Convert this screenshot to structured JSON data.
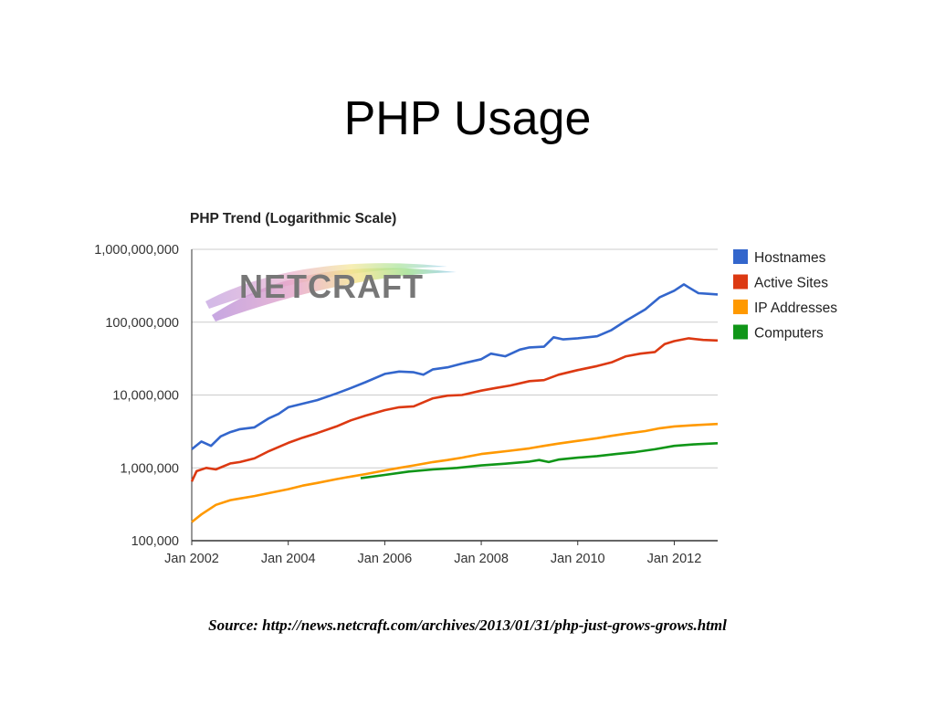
{
  "slide": {
    "title": "PHP Usage",
    "source": "Source: http://news.netcraft.com/archives/2013/01/31/php-just-grows-grows.html"
  },
  "logo": {
    "text": "NETCRAFT"
  },
  "chart_data": {
    "type": "line",
    "title": "PHP Trend (Logarithmic Scale)",
    "xlabel": "",
    "ylabel": "",
    "y_scale": "log",
    "ylim": [
      100000,
      1000000000
    ],
    "xlim": [
      2002.0,
      2012.9
    ],
    "y_ticks": [
      {
        "value": 1000000000,
        "label": "1,000,000,000"
      },
      {
        "value": 100000000,
        "label": "100,000,000"
      },
      {
        "value": 10000000,
        "label": "10,000,000"
      },
      {
        "value": 1000000,
        "label": "1,000,000"
      },
      {
        "value": 100000,
        "label": "100,000"
      }
    ],
    "x_ticks": [
      {
        "value": 2002,
        "label": "Jan 2002"
      },
      {
        "value": 2004,
        "label": "Jan 2004"
      },
      {
        "value": 2006,
        "label": "Jan 2006"
      },
      {
        "value": 2008,
        "label": "Jan 2008"
      },
      {
        "value": 2010,
        "label": "Jan 2010"
      },
      {
        "value": 2012,
        "label": "Jan 2012"
      }
    ],
    "grid": true,
    "legend_position": "right",
    "series": [
      {
        "name": "Hostnames",
        "color": "#3366cc",
        "points": [
          [
            2002.0,
            1800000
          ],
          [
            2002.2,
            2300000
          ],
          [
            2002.4,
            2000000
          ],
          [
            2002.6,
            2700000
          ],
          [
            2002.8,
            3100000
          ],
          [
            2003.0,
            3400000
          ],
          [
            2003.3,
            3600000
          ],
          [
            2003.6,
            4800000
          ],
          [
            2003.8,
            5500000
          ],
          [
            2004.0,
            6800000
          ],
          [
            2004.3,
            7600000
          ],
          [
            2004.6,
            8500000
          ],
          [
            2005.0,
            10500000
          ],
          [
            2005.3,
            12500000
          ],
          [
            2005.6,
            15000000
          ],
          [
            2006.0,
            19500000
          ],
          [
            2006.3,
            21000000
          ],
          [
            2006.6,
            20500000
          ],
          [
            2006.8,
            19000000
          ],
          [
            2007.0,
            22500000
          ],
          [
            2007.3,
            24000000
          ],
          [
            2007.6,
            27000000
          ],
          [
            2008.0,
            31000000
          ],
          [
            2008.2,
            37000000
          ],
          [
            2008.5,
            34000000
          ],
          [
            2008.8,
            42000000
          ],
          [
            2009.0,
            45000000
          ],
          [
            2009.3,
            46000000
          ],
          [
            2009.5,
            62000000
          ],
          [
            2009.7,
            58000000
          ],
          [
            2010.0,
            60000000
          ],
          [
            2010.4,
            64000000
          ],
          [
            2010.7,
            78000000
          ],
          [
            2011.0,
            105000000
          ],
          [
            2011.4,
            150000000
          ],
          [
            2011.7,
            220000000
          ],
          [
            2012.0,
            270000000
          ],
          [
            2012.2,
            330000000
          ],
          [
            2012.3,
            300000000
          ],
          [
            2012.5,
            250000000
          ],
          [
            2012.7,
            245000000
          ],
          [
            2012.9,
            240000000
          ]
        ]
      },
      {
        "name": "Active Sites",
        "color": "#dc3912",
        "points": [
          [
            2002.0,
            650000
          ],
          [
            2002.1,
            900000
          ],
          [
            2002.3,
            1000000
          ],
          [
            2002.5,
            950000
          ],
          [
            2002.8,
            1150000
          ],
          [
            2003.0,
            1200000
          ],
          [
            2003.3,
            1350000
          ],
          [
            2003.6,
            1700000
          ],
          [
            2004.0,
            2200000
          ],
          [
            2004.3,
            2600000
          ],
          [
            2004.6,
            3000000
          ],
          [
            2005.0,
            3700000
          ],
          [
            2005.3,
            4500000
          ],
          [
            2005.6,
            5200000
          ],
          [
            2006.0,
            6200000
          ],
          [
            2006.3,
            6800000
          ],
          [
            2006.6,
            7000000
          ],
          [
            2007.0,
            9000000
          ],
          [
            2007.3,
            9800000
          ],
          [
            2007.6,
            10000000
          ],
          [
            2008.0,
            11500000
          ],
          [
            2008.3,
            12500000
          ],
          [
            2008.6,
            13500000
          ],
          [
            2009.0,
            15500000
          ],
          [
            2009.3,
            16000000
          ],
          [
            2009.6,
            19000000
          ],
          [
            2010.0,
            22000000
          ],
          [
            2010.4,
            25000000
          ],
          [
            2010.7,
            28000000
          ],
          [
            2011.0,
            34000000
          ],
          [
            2011.3,
            37000000
          ],
          [
            2011.6,
            39000000
          ],
          [
            2011.8,
            50000000
          ],
          [
            2012.0,
            55000000
          ],
          [
            2012.3,
            60000000
          ],
          [
            2012.6,
            57000000
          ],
          [
            2012.9,
            56000000
          ]
        ]
      },
      {
        "name": "IP Addresses",
        "color": "#ff9900",
        "points": [
          [
            2002.0,
            180000
          ],
          [
            2002.2,
            230000
          ],
          [
            2002.5,
            310000
          ],
          [
            2002.8,
            360000
          ],
          [
            2003.0,
            380000
          ],
          [
            2003.3,
            410000
          ],
          [
            2003.6,
            450000
          ],
          [
            2004.0,
            510000
          ],
          [
            2004.3,
            570000
          ],
          [
            2004.6,
            620000
          ],
          [
            2005.0,
            700000
          ],
          [
            2005.3,
            760000
          ],
          [
            2005.6,
            820000
          ],
          [
            2006.0,
            920000
          ],
          [
            2006.3,
            1000000
          ],
          [
            2006.6,
            1080000
          ],
          [
            2007.0,
            1200000
          ],
          [
            2007.3,
            1280000
          ],
          [
            2007.6,
            1380000
          ],
          [
            2008.0,
            1550000
          ],
          [
            2008.3,
            1630000
          ],
          [
            2008.6,
            1720000
          ],
          [
            2009.0,
            1850000
          ],
          [
            2009.3,
            2000000
          ],
          [
            2009.6,
            2150000
          ],
          [
            2010.0,
            2350000
          ],
          [
            2010.4,
            2550000
          ],
          [
            2010.7,
            2750000
          ],
          [
            2011.0,
            2950000
          ],
          [
            2011.4,
            3200000
          ],
          [
            2011.7,
            3500000
          ],
          [
            2012.0,
            3700000
          ],
          [
            2012.4,
            3850000
          ],
          [
            2012.9,
            4000000
          ]
        ]
      },
      {
        "name": "Computers",
        "color": "#109618",
        "points": [
          [
            2005.5,
            720000
          ],
          [
            2006.0,
            800000
          ],
          [
            2006.5,
            890000
          ],
          [
            2007.0,
            950000
          ],
          [
            2007.5,
            1000000
          ],
          [
            2008.0,
            1080000
          ],
          [
            2008.5,
            1140000
          ],
          [
            2009.0,
            1220000
          ],
          [
            2009.2,
            1280000
          ],
          [
            2009.4,
            1200000
          ],
          [
            2009.6,
            1300000
          ],
          [
            2010.0,
            1380000
          ],
          [
            2010.4,
            1450000
          ],
          [
            2010.8,
            1550000
          ],
          [
            2011.2,
            1650000
          ],
          [
            2011.6,
            1800000
          ],
          [
            2012.0,
            2000000
          ],
          [
            2012.4,
            2100000
          ],
          [
            2012.9,
            2180000
          ]
        ]
      }
    ]
  }
}
